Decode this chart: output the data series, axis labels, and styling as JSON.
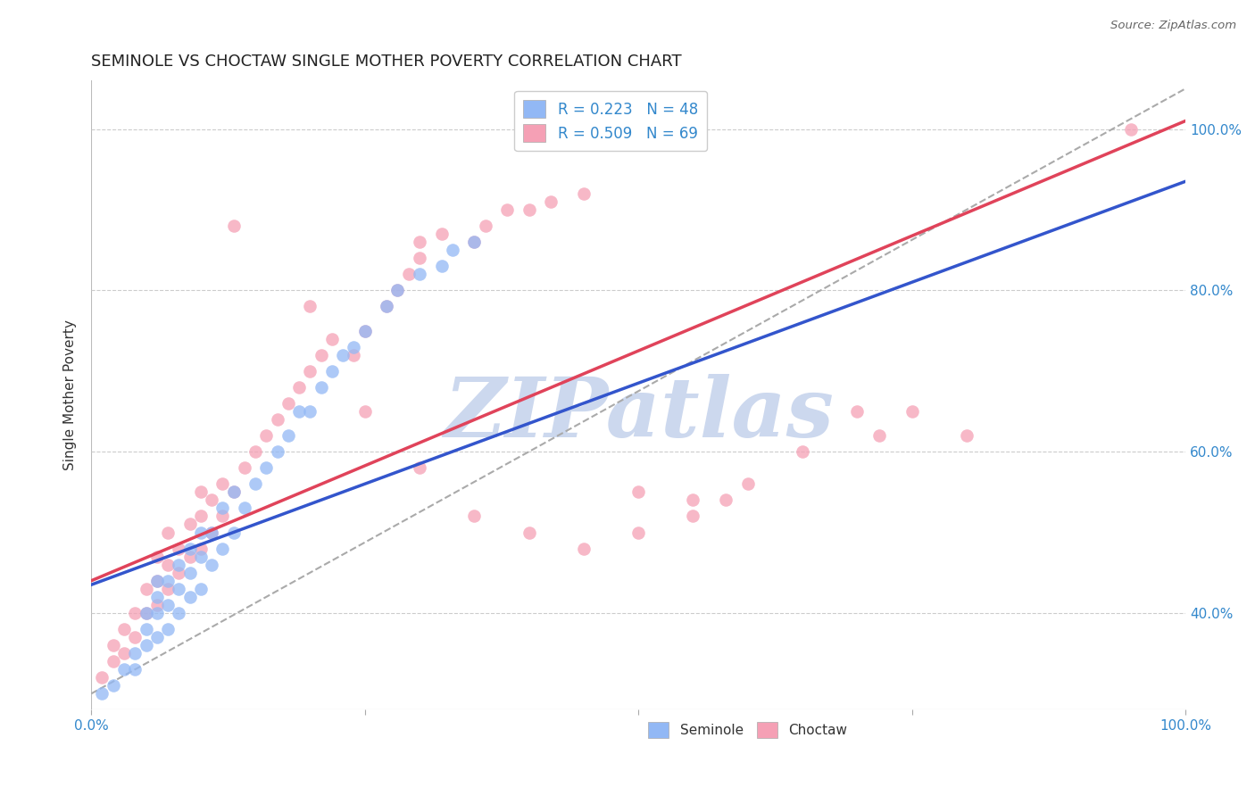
{
  "title": "SEMINOLE VS CHOCTAW SINGLE MOTHER POVERTY CORRELATION CHART",
  "source": "Source: ZipAtlas.com",
  "ylabel": "Single Mother Poverty",
  "xlim": [
    0,
    1
  ],
  "ylim": [
    0.28,
    1.06
  ],
  "xticks": [
    0,
    0.25,
    0.5,
    0.75,
    1.0
  ],
  "xticklabels": [
    "0.0%",
    "",
    "",
    "",
    "100.0%"
  ],
  "yticks": [
    0.4,
    0.6,
    0.8,
    1.0
  ],
  "yticklabels": [
    "40.0%",
    "60.0%",
    "80.0%",
    "100.0%"
  ],
  "seminole_color": "#92b8f5",
  "choctaw_color": "#f5a0b5",
  "seminole_line_color": "#3355cc",
  "choctaw_line_color": "#e0435a",
  "ref_line_color": "#aaaaaa",
  "legend_R_seminole": "R = 0.223",
  "legend_N_seminole": "N = 48",
  "legend_R_choctaw": "R = 0.509",
  "legend_N_choctaw": "N = 69",
  "watermark_color": "#ccd8ee",
  "grid_color": "#cccccc",
  "background_color": "#ffffff",
  "title_fontsize": 13,
  "axis_label_fontsize": 11,
  "tick_label_fontsize": 11,
  "tick_label_color": "#3388cc",
  "seminole_line_intercept": 0.435,
  "seminole_line_slope": 0.5,
  "choctaw_line_intercept": 0.44,
  "choctaw_line_slope": 0.57,
  "ref_line_intercept": 0.3,
  "ref_line_slope": 0.75,
  "seminole_x": [
    0.01,
    0.02,
    0.03,
    0.04,
    0.04,
    0.05,
    0.05,
    0.05,
    0.06,
    0.06,
    0.06,
    0.06,
    0.07,
    0.07,
    0.07,
    0.08,
    0.08,
    0.08,
    0.09,
    0.09,
    0.09,
    0.1,
    0.1,
    0.1,
    0.11,
    0.11,
    0.12,
    0.12,
    0.13,
    0.13,
    0.14,
    0.15,
    0.16,
    0.17,
    0.18,
    0.19,
    0.2,
    0.21,
    0.22,
    0.23,
    0.24,
    0.25,
    0.27,
    0.28,
    0.3,
    0.32,
    0.33,
    0.35
  ],
  "seminole_y": [
    0.3,
    0.31,
    0.33,
    0.33,
    0.35,
    0.36,
    0.38,
    0.4,
    0.37,
    0.4,
    0.42,
    0.44,
    0.38,
    0.41,
    0.44,
    0.4,
    0.43,
    0.46,
    0.42,
    0.45,
    0.48,
    0.43,
    0.47,
    0.5,
    0.46,
    0.5,
    0.48,
    0.53,
    0.5,
    0.55,
    0.53,
    0.56,
    0.58,
    0.6,
    0.62,
    0.65,
    0.65,
    0.68,
    0.7,
    0.72,
    0.73,
    0.75,
    0.78,
    0.8,
    0.82,
    0.83,
    0.85,
    0.86
  ],
  "choctaw_x": [
    0.01,
    0.02,
    0.02,
    0.03,
    0.03,
    0.04,
    0.04,
    0.05,
    0.05,
    0.06,
    0.06,
    0.06,
    0.07,
    0.07,
    0.07,
    0.08,
    0.08,
    0.09,
    0.09,
    0.1,
    0.1,
    0.1,
    0.11,
    0.11,
    0.12,
    0.12,
    0.13,
    0.14,
    0.15,
    0.16,
    0.17,
    0.18,
    0.19,
    0.2,
    0.21,
    0.22,
    0.24,
    0.25,
    0.27,
    0.28,
    0.29,
    0.3,
    0.3,
    0.32,
    0.35,
    0.36,
    0.38,
    0.4,
    0.42,
    0.45,
    0.5,
    0.55,
    0.58,
    0.6,
    0.65,
    0.7,
    0.72,
    0.75,
    0.8,
    0.95,
    0.13,
    0.2,
    0.25,
    0.3,
    0.35,
    0.4,
    0.45,
    0.5,
    0.55
  ],
  "choctaw_y": [
    0.32,
    0.34,
    0.36,
    0.35,
    0.38,
    0.37,
    0.4,
    0.4,
    0.43,
    0.41,
    0.44,
    0.47,
    0.43,
    0.46,
    0.5,
    0.45,
    0.48,
    0.47,
    0.51,
    0.48,
    0.52,
    0.55,
    0.5,
    0.54,
    0.52,
    0.56,
    0.55,
    0.58,
    0.6,
    0.62,
    0.64,
    0.66,
    0.68,
    0.7,
    0.72,
    0.74,
    0.72,
    0.75,
    0.78,
    0.8,
    0.82,
    0.84,
    0.86,
    0.87,
    0.86,
    0.88,
    0.9,
    0.9,
    0.91,
    0.92,
    0.5,
    0.52,
    0.54,
    0.56,
    0.6,
    0.65,
    0.62,
    0.65,
    0.62,
    1.0,
    0.88,
    0.78,
    0.65,
    0.58,
    0.52,
    0.5,
    0.48,
    0.55,
    0.54
  ]
}
